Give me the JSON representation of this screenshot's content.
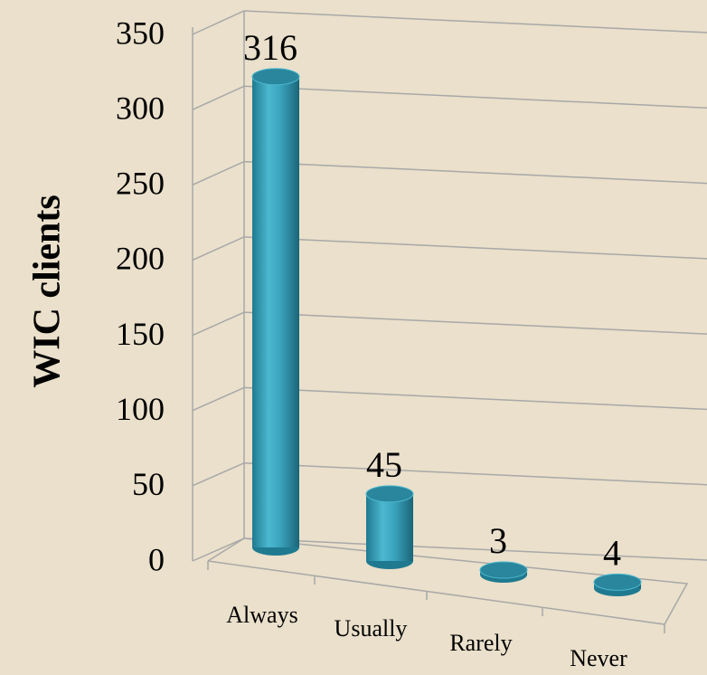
{
  "chart_data": {
    "type": "bar",
    "y_label": "WIC clients",
    "categories": [
      "Always",
      "Usually",
      "Rarely",
      "Never"
    ],
    "values": [
      316,
      45,
      3,
      4
    ],
    "color": "#3aa3bd",
    "ylim": [
      0,
      350
    ],
    "yticks": [
      0,
      50,
      100,
      150,
      200,
      250,
      300,
      350
    ],
    "grid": true
  }
}
